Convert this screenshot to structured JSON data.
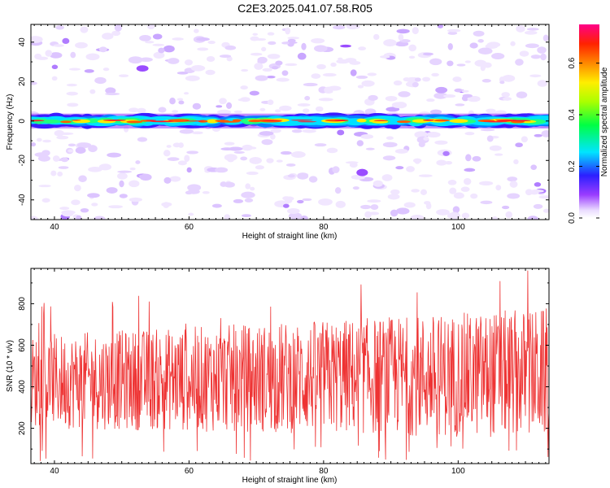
{
  "title": "C2E3.2025.041.07.58.R05",
  "chart_data": [
    {
      "type": "heatmap",
      "title": "C2E3.2025.041.07.58.R05",
      "xlabel": "Height of straight line (km)",
      "ylabel": "Frequency (Hz)",
      "xlim": [
        36.5,
        113.5
      ],
      "ylim": [
        -50,
        49
      ],
      "xticks": [
        40,
        60,
        80,
        100
      ],
      "yticks": [
        -40,
        -20,
        0,
        20,
        40
      ],
      "colorbar": {
        "label": "Normalized spectral amplitude",
        "range": [
          0.0,
          0.75
        ],
        "ticks": [
          0.0,
          0.2,
          0.4,
          0.6
        ],
        "colormap": "rainbow (purple-blue-cyan-green-yellow-red-magenta)"
      },
      "features": {
        "dominant_band_frequency_hz": 0,
        "band_halfwidth_hz": 3,
        "band_amplitude_range": [
          0.2,
          0.75
        ],
        "background_amplitude_range": [
          0.0,
          0.1
        ]
      }
    },
    {
      "type": "line",
      "xlabel": "Height of straight line (km)",
      "ylabel": "SNR (10 * v/v)",
      "xlim": [
        36.5,
        113.5
      ],
      "ylim": [
        30,
        970
      ],
      "xticks": [
        40,
        60,
        80,
        100
      ],
      "yticks": [
        200,
        400,
        600,
        800
      ],
      "series_color": "#ee3333",
      "series_x_range": [
        36.5,
        113.5
      ],
      "series_point_spacing_km": 0.07,
      "series_y_range": [
        40,
        960
      ],
      "series_typical_band": [
        200,
        650
      ]
    }
  ]
}
